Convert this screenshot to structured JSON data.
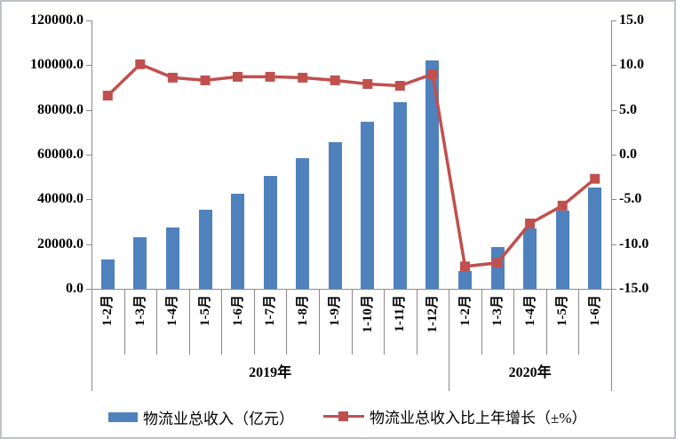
{
  "chart_data": {
    "type": "bar+line",
    "title": "",
    "categories": [
      "1-2月",
      "1-3月",
      "1-4月",
      "1-5月",
      "1-6月",
      "1-7月",
      "1-8月",
      "1-9月",
      "1-10月",
      "1-11月",
      "1-12月",
      "1-2月",
      "1-3月",
      "1-4月",
      "1-5月",
      "1-6月"
    ],
    "year_groups": [
      {
        "label": "2019年",
        "start": 0,
        "count": 11
      },
      {
        "label": "2020年",
        "start": 11,
        "count": 5
      }
    ],
    "series": [
      {
        "name": "物流业总收入（亿元）",
        "type": "bar",
        "axis": "left",
        "color": "#4F81BD",
        "values": [
          13000,
          23200,
          27300,
          35200,
          42400,
          50400,
          58300,
          65700,
          74600,
          83400,
          102000,
          7800,
          18600,
          27000,
          34800,
          45500
        ]
      },
      {
        "name": "物流业总收入比上年增长（±%）",
        "type": "line",
        "axis": "right",
        "color": "#C0504D",
        "values": [
          6.6,
          10.1,
          8.6,
          8.3,
          8.7,
          8.7,
          8.6,
          8.3,
          7.9,
          7.7,
          9.0,
          -12.5,
          -12.1,
          -7.7,
          -5.7,
          -2.7
        ]
      }
    ],
    "left_axis": {
      "min": 0,
      "max": 120000,
      "ticks": [
        "120000.0",
        "100000.0",
        "80000.0",
        "60000.0",
        "40000.0",
        "20000.0",
        "0.0"
      ]
    },
    "right_axis": {
      "min": -15,
      "max": 15,
      "ticks": [
        "15.0",
        "10.0",
        "5.0",
        "0.0",
        "-5.0",
        "-10.0",
        "-15.0"
      ]
    },
    "grid": "off",
    "legend_position": "bottom"
  },
  "legend": {
    "bar_label": "物流业总收入（亿元）",
    "line_label": "物流业总收入比上年增长（±%）"
  },
  "colors": {
    "bar": "#4F81BD",
    "line": "#C0504D",
    "axis": "#8a8a8a",
    "frame_border": "#bfc3c7"
  }
}
